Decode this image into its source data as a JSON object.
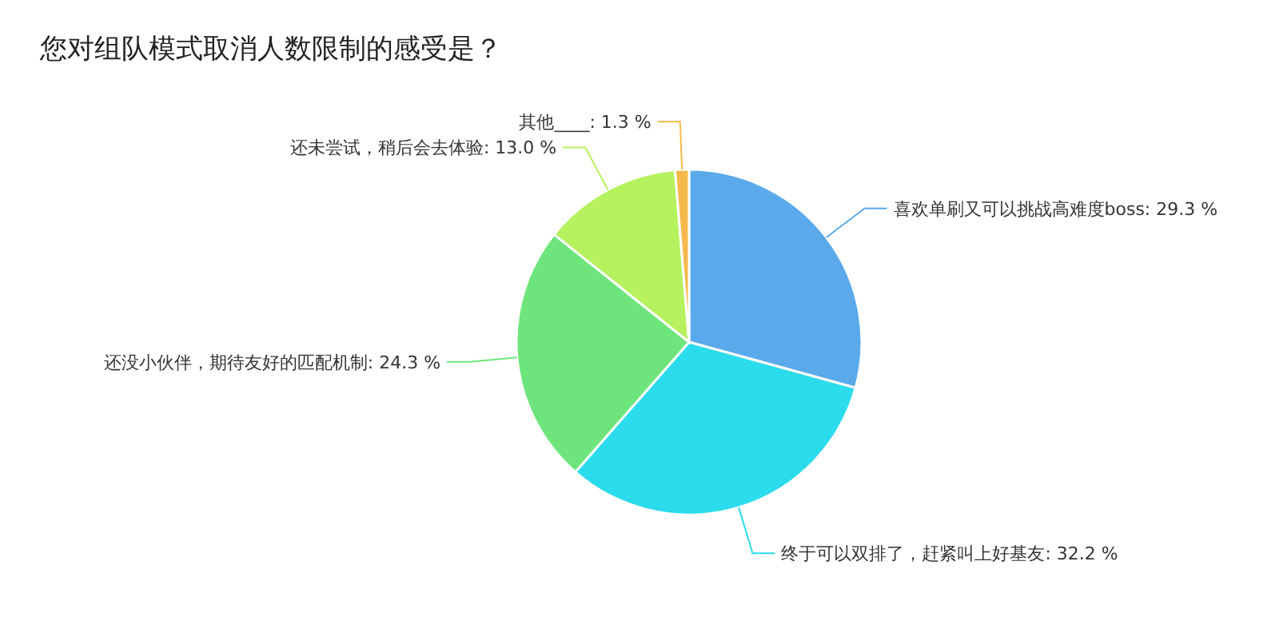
{
  "chart_data": {
    "type": "pie",
    "title": "您对组队模式取消人数限制的感受是？",
    "categories": [
      "喜欢单刷又可以挑战高难度boss",
      "终于可以双排了，赶紧叫上好基友",
      "还没小伙伴，期待友好的匹配机制",
      "还未尝试，稍后会去体验",
      "其他____"
    ],
    "values": [
      29.3,
      32.2,
      24.3,
      13.0,
      1.3
    ],
    "colors": [
      "#5aaaeb",
      "#2adcec",
      "#6de57c",
      "#b5f25e",
      "#f5b94a"
    ],
    "value_labels": [
      "29.3 %",
      "32.2 %",
      "24.3 %",
      "13.0 %",
      "1.3 %"
    ],
    "legend": false
  }
}
